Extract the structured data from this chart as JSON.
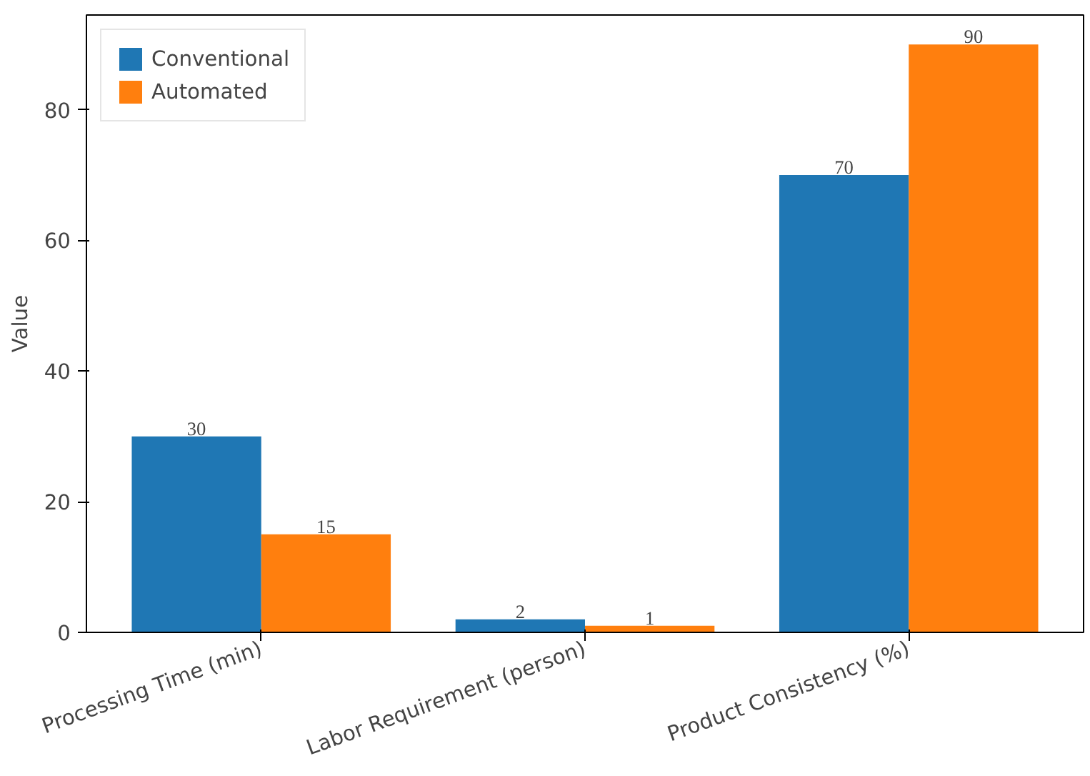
{
  "chart_data": {
    "type": "bar",
    "ylabel": "Value",
    "categories": [
      "Processing Time (min)",
      "Labor Requirement (person)",
      "Product Consistency (%)"
    ],
    "series": [
      {
        "name": "Conventional",
        "color": "#1f77b4",
        "values": [
          30,
          2,
          70
        ]
      },
      {
        "name": "Automated",
        "color": "#ff7f0e",
        "values": [
          15,
          1,
          90
        ]
      }
    ],
    "ylim": [
      0,
      94.5
    ],
    "yticks": [
      0,
      20,
      40,
      60,
      80
    ],
    "grid": false,
    "legend": "top left",
    "data_labels": true
  }
}
